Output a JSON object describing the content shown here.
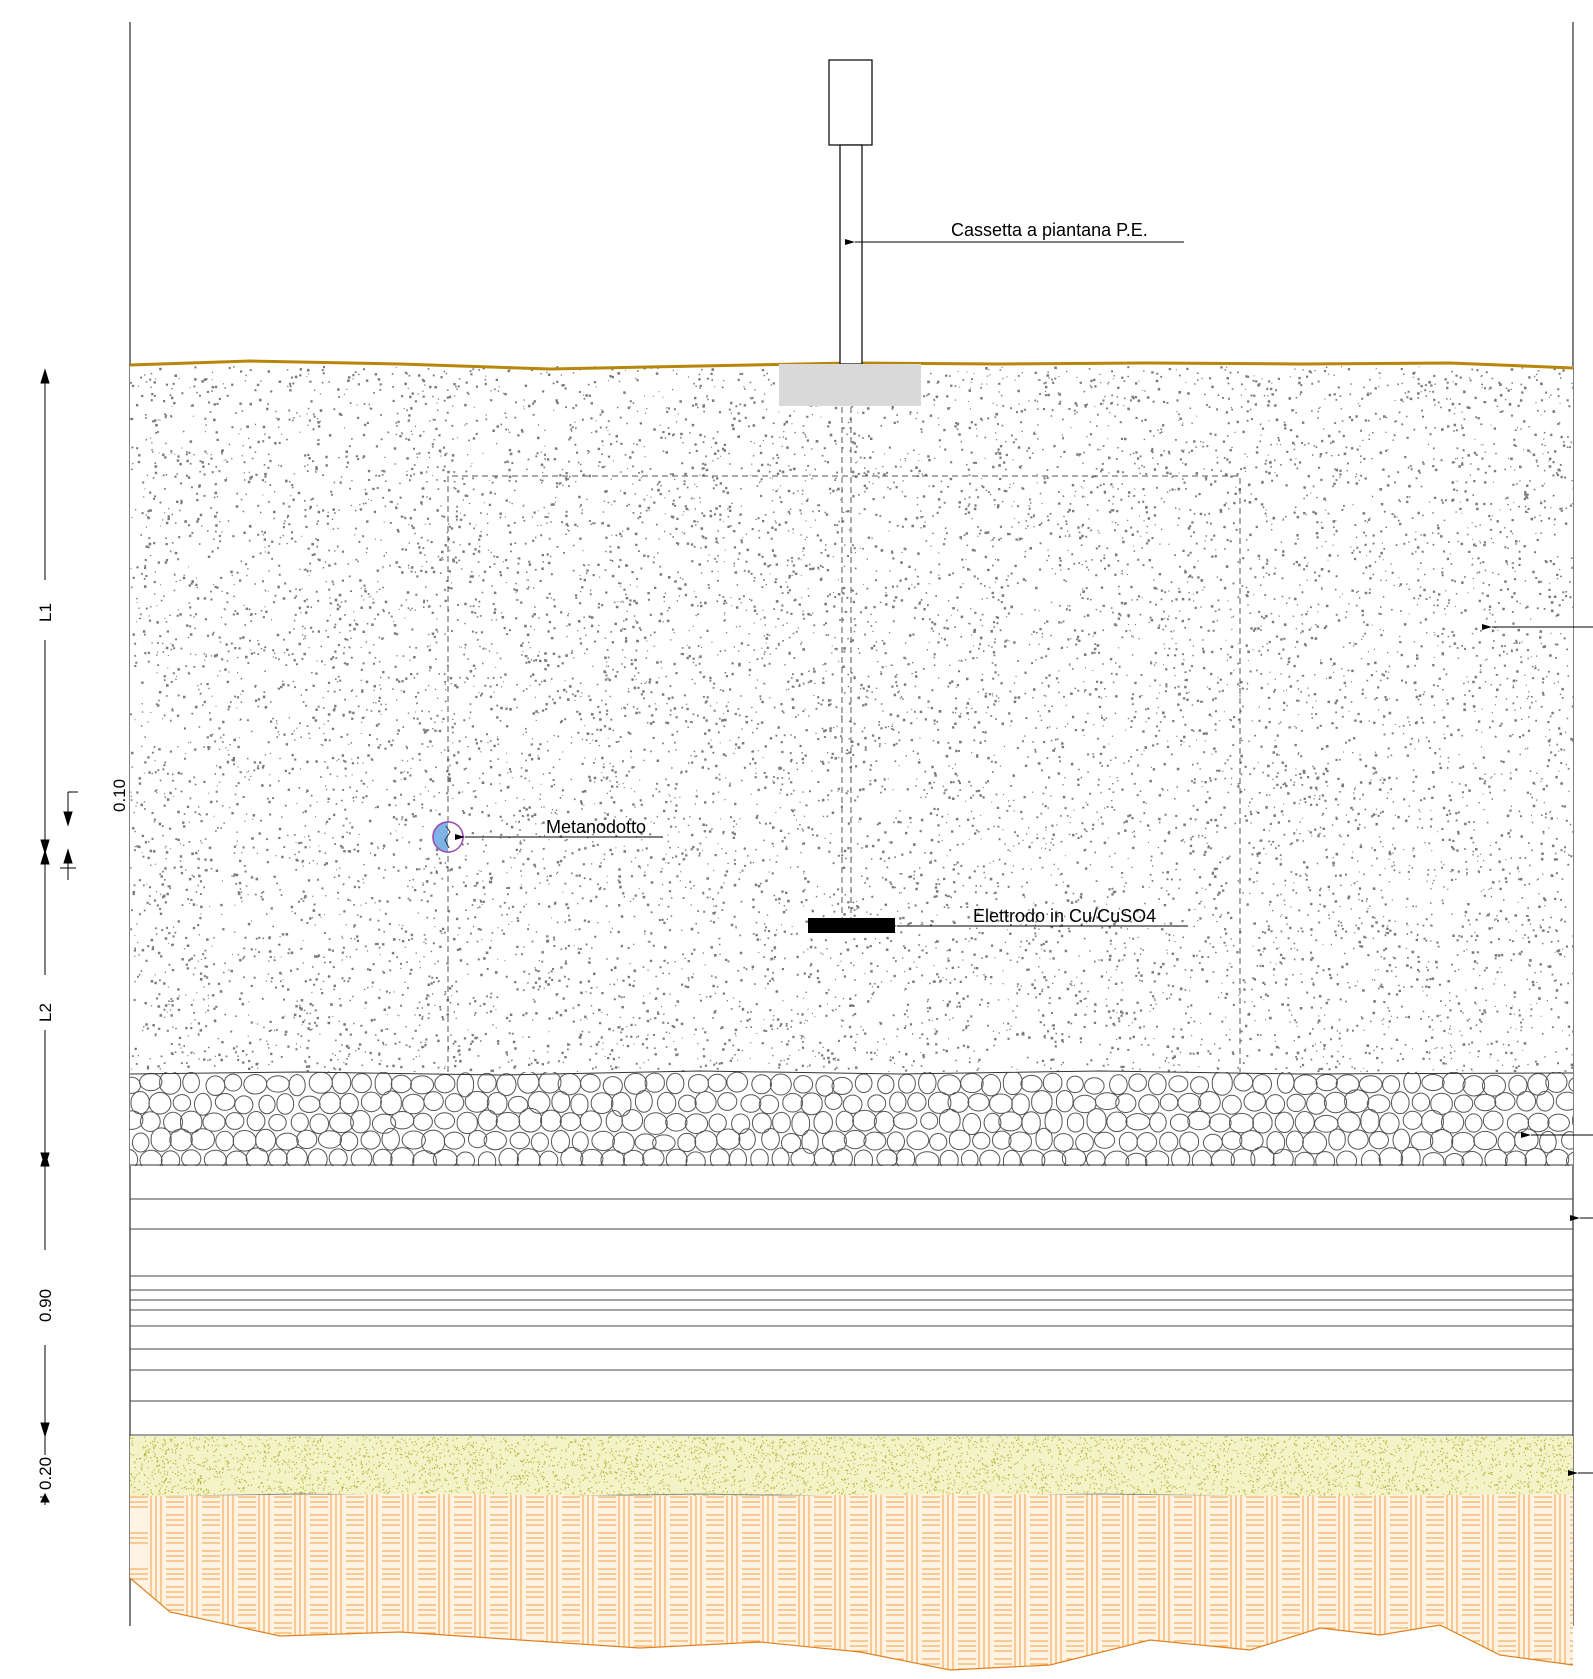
{
  "labels": {
    "cassetta": "Cassetta a piantana P.E.",
    "metanodotto": "Metanodotto",
    "elettrodo": "Elettrodo in Cu/CuSO4"
  },
  "dimensions": {
    "l1": "L1",
    "l2": "L2",
    "d010": "0.10",
    "d090": "0.90",
    "d020": "0.20"
  },
  "colors": {
    "ground_line": "#b8860b",
    "fill_dots": "#7a7a7a",
    "gravel_stroke": "#555555",
    "sand": "#e8e89a",
    "sand_dots": "#b5b53a",
    "clay": "#f0a040",
    "pipe_fill": "#7fb3e6",
    "pipe_stroke": "#9a4fb0",
    "plinth": "#d9d9d9",
    "electrode": "#000000"
  }
}
